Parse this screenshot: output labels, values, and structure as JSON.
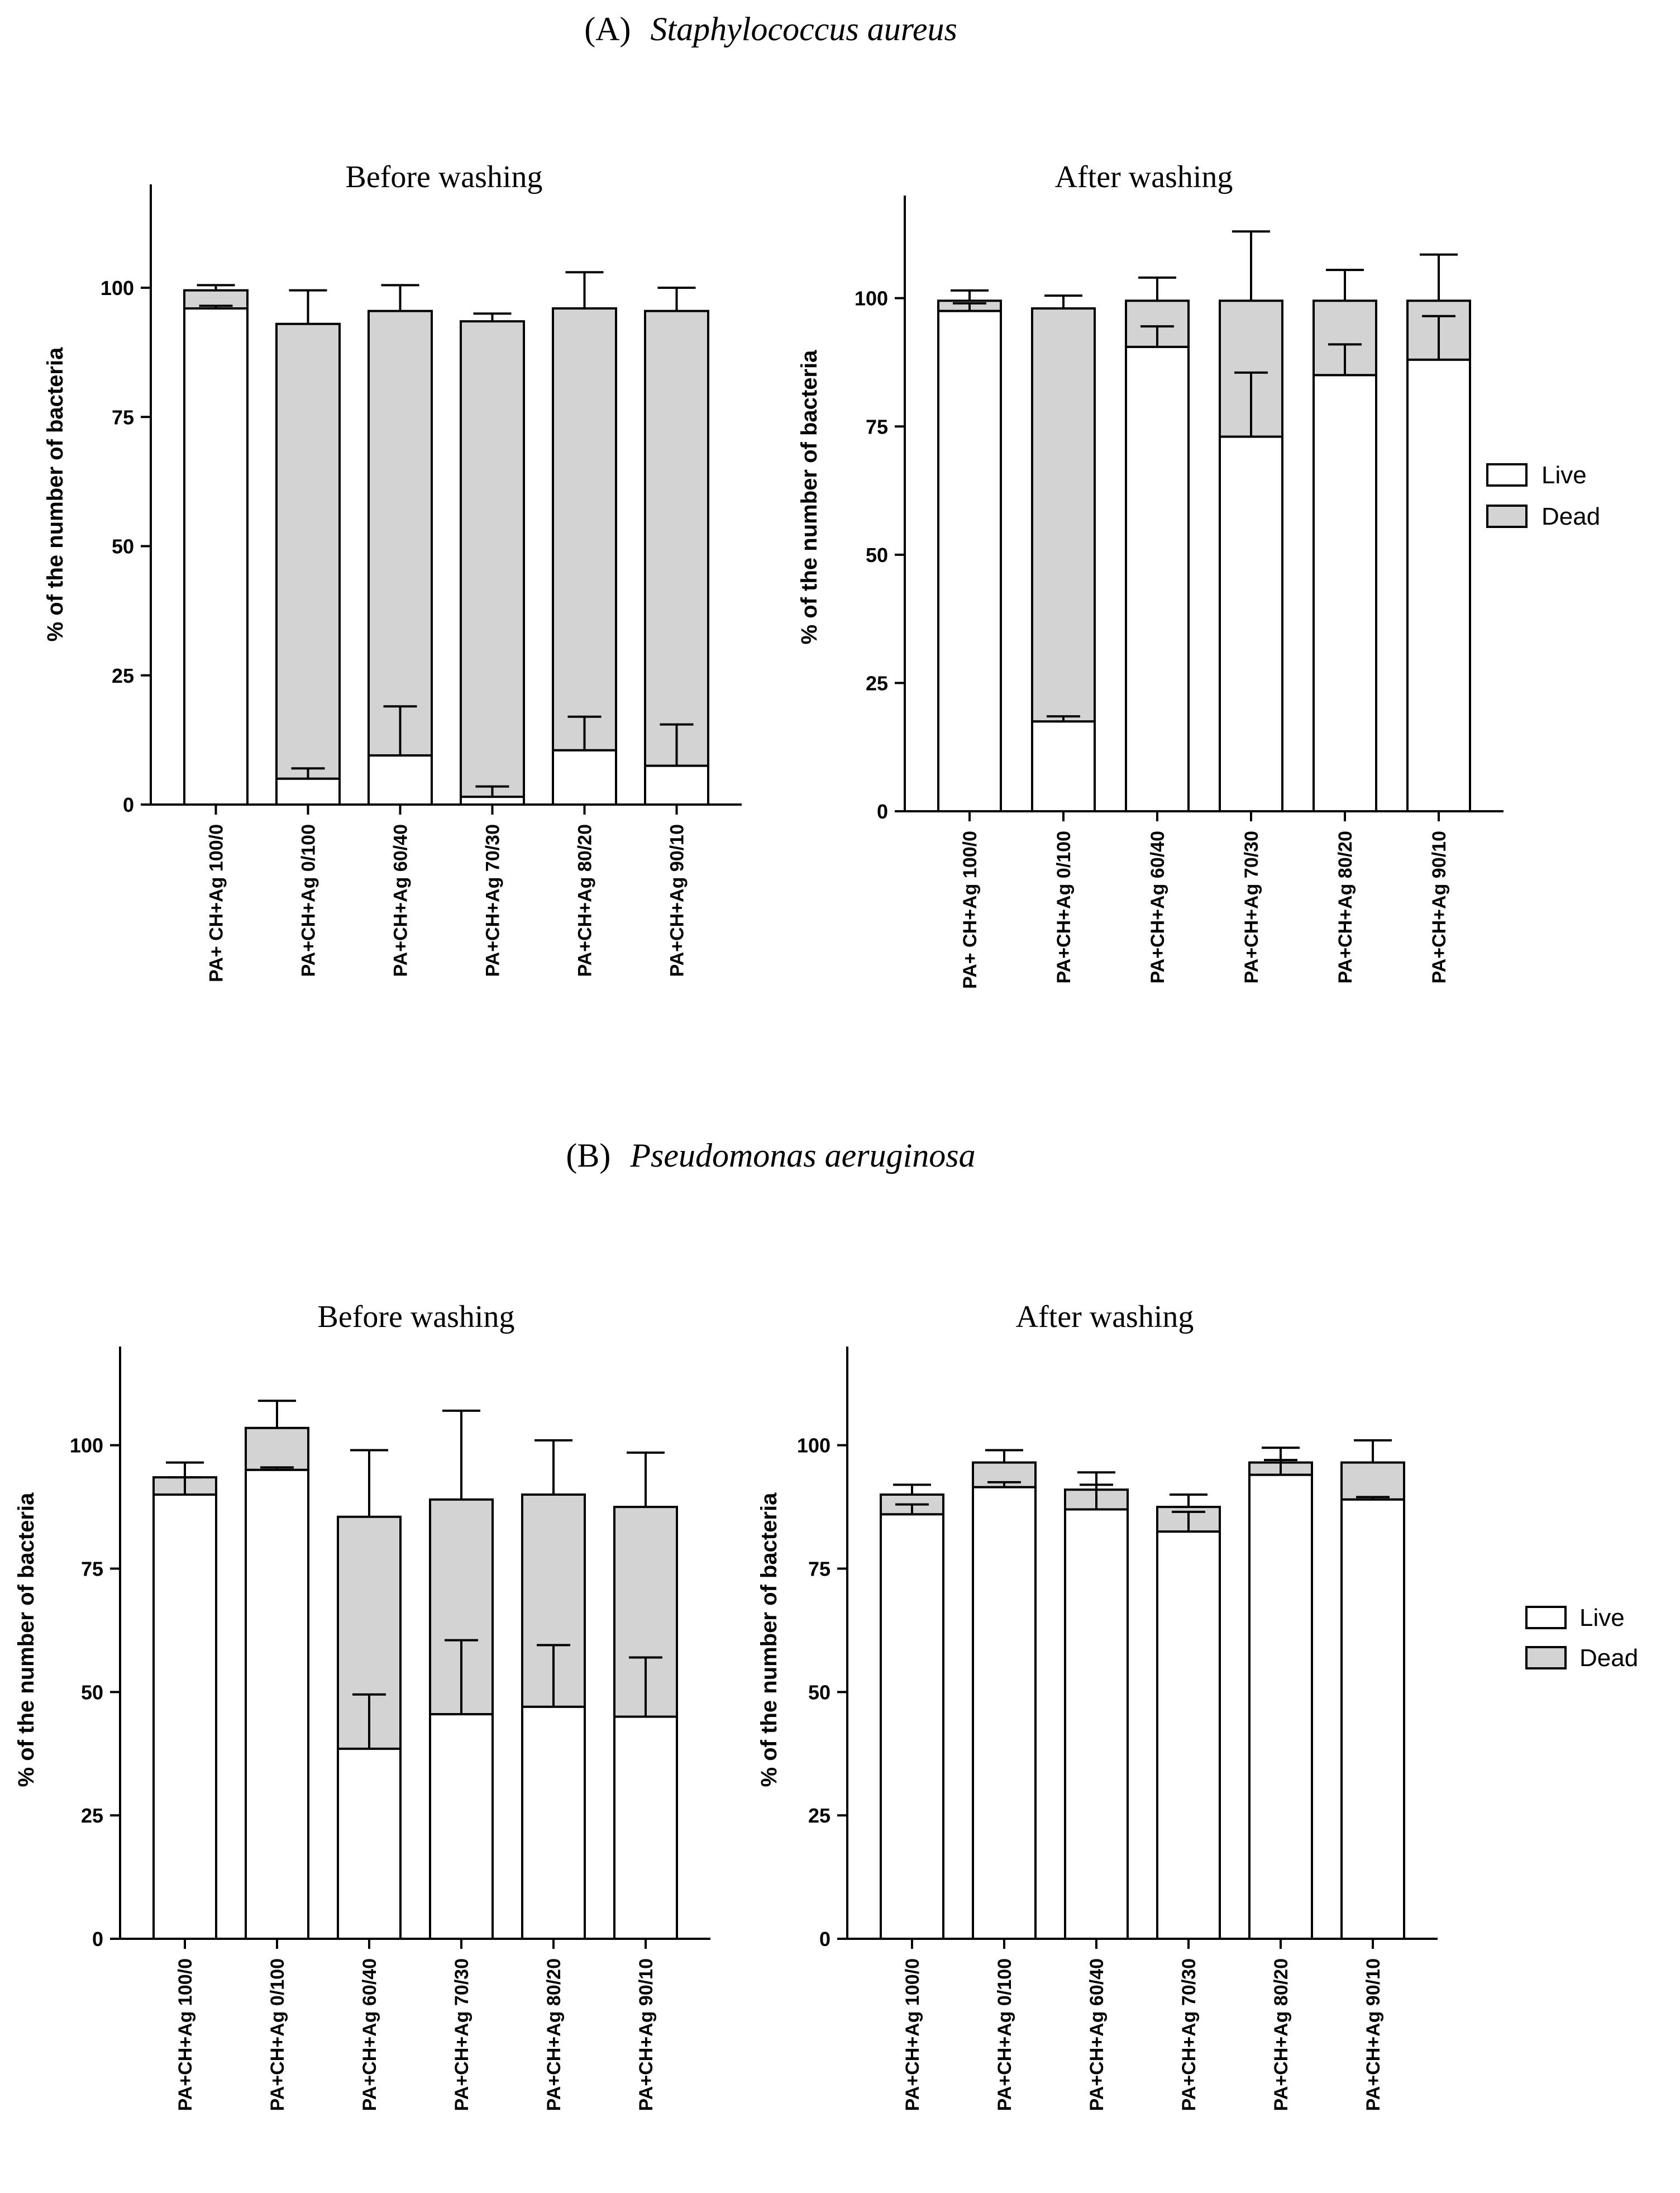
{
  "panels": [
    {
      "label": "(A)",
      "organism": "Staphylococcus aureus"
    },
    {
      "label": "(B)",
      "organism": "Pseudomonas aeruginosa"
    }
  ],
  "legend": {
    "live": "Live",
    "dead": "Dead"
  },
  "colors": {
    "live": "#ffffff",
    "dead": "#d3d3d3",
    "stroke": "#000000"
  },
  "chart_data": [
    {
      "type": "bar",
      "stacked": true,
      "panel": "(A) Staphylococcus aureus",
      "title": "Before washing",
      "ylabel": "% of the number of bacteria",
      "xlabel": "",
      "ylim": [
        0,
        120
      ],
      "yticks": [
        0,
        25,
        50,
        75,
        100
      ],
      "categories": [
        "PA+ CH+Ag 100/0",
        "PA+CH+Ag 0/100",
        "PA+CH+Ag 60/40",
        "PA+CH+Ag 70/30",
        "PA+CH+Ag 80/20",
        "PA+CH+Ag 90/10"
      ],
      "series": [
        {
          "name": "Live",
          "values": [
            96,
            5,
            9.5,
            1.5,
            10.5,
            7.5
          ],
          "error": [
            0.5,
            2,
            9.5,
            2,
            6.5,
            8
          ]
        },
        {
          "name": "Dead",
          "values": [
            3.5,
            88,
            86,
            92,
            85.5,
            88
          ],
          "error": [
            1,
            6.5,
            5,
            1.5,
            7,
            4.5
          ]
        }
      ]
    },
    {
      "type": "bar",
      "stacked": true,
      "panel": "(A) Staphylococcus aureus",
      "title": "After washing",
      "ylabel": "% of the number of bacteria",
      "xlabel": "",
      "ylim": [
        0,
        120
      ],
      "yticks": [
        0,
        25,
        50,
        75,
        100
      ],
      "categories": [
        "PA+ CH+Ag 100/0",
        "PA+CH+Ag 0/100",
        "PA+CH+Ag 60/40",
        "PA+CH+Ag 70/30",
        "PA+CH+Ag 80/20",
        "PA+CH+Ag 90/10"
      ],
      "series": [
        {
          "name": "Live",
          "values": [
            97.5,
            17.5,
            90.5,
            73,
            85,
            88
          ],
          "error": [
            1.5,
            1,
            4,
            12.5,
            6,
            8.5
          ]
        },
        {
          "name": "Dead",
          "values": [
            2,
            80.5,
            9,
            26.5,
            14.5,
            11.5
          ],
          "error": [
            2,
            2.5,
            4.5,
            13.5,
            6,
            9
          ]
        }
      ]
    },
    {
      "type": "bar",
      "stacked": true,
      "panel": "(B) Pseudomonas aeruginosa",
      "title": "Before washing",
      "ylabel": "% of the number of bacteria",
      "xlabel": "",
      "ylim": [
        0,
        120
      ],
      "yticks": [
        0,
        25,
        50,
        75,
        100
      ],
      "categories": [
        "PA+CH+Ag 100/0",
        "PA+CH+Ag 0/100",
        "PA+CH+Ag 60/40",
        "PA+CH+Ag 70/30",
        "PA+CH+Ag 80/20",
        "PA+CH+Ag 90/10"
      ],
      "series": [
        {
          "name": "Live",
          "values": [
            90,
            95,
            38.5,
            45.5,
            47,
            45
          ],
          "error": [
            3.5,
            0.5,
            11,
            15,
            12.5,
            12
          ]
        },
        {
          "name": "Dead",
          "values": [
            3.5,
            8.5,
            47,
            43.5,
            43,
            42.5
          ],
          "error": [
            3,
            5.5,
            13.5,
            18,
            11,
            11
          ]
        }
      ]
    },
    {
      "type": "bar",
      "stacked": true,
      "panel": "(B) Pseudomonas aeruginosa",
      "title": "After washing",
      "ylabel": "% of the number of bacteria",
      "xlabel": "",
      "ylim": [
        0,
        120
      ],
      "yticks": [
        0,
        25,
        50,
        75,
        100
      ],
      "categories": [
        "PA+CH+Ag 100/0",
        "PA+CH+Ag 0/100",
        "PA+CH+Ag 60/40",
        "PA+CH+Ag 70/30",
        "PA+CH+Ag 80/20",
        "PA+CH+Ag 90/10"
      ],
      "series": [
        {
          "name": "Live",
          "values": [
            86,
            91.5,
            87,
            82.5,
            94,
            89
          ],
          "error": [
            2,
            1,
            5,
            4,
            3,
            0.5
          ]
        },
        {
          "name": "Dead",
          "values": [
            4,
            5,
            4,
            5,
            2.5,
            7.5
          ],
          "error": [
            2,
            2.5,
            3.5,
            2.5,
            3,
            4.5
          ]
        }
      ]
    }
  ]
}
